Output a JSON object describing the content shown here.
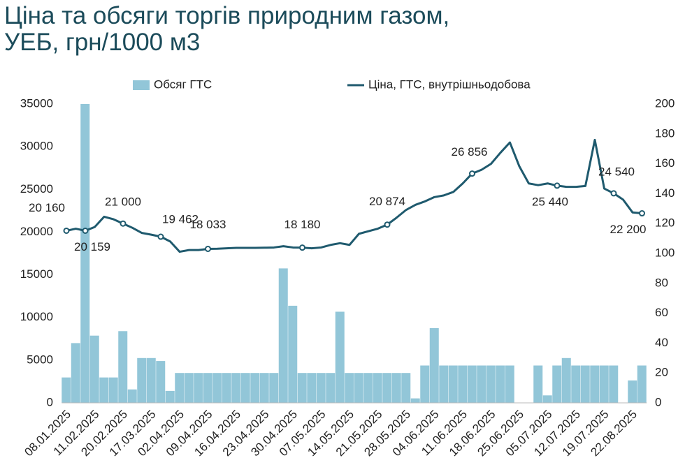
{
  "chart_data": {
    "type": "combo",
    "title": [
      "Ціна та обсяги торгів природним газом,",
      "УЕБ, грн/1000 м3"
    ],
    "categories": [
      "08.01.2025",
      null,
      null,
      "11.02.2025",
      null,
      null,
      "20.02.2025",
      null,
      null,
      "17.03.2025",
      null,
      null,
      "02.04.2025",
      null,
      null,
      "09.04.2025",
      null,
      null,
      "16.04.2025",
      null,
      null,
      "23.04.2025",
      null,
      null,
      "30.04.2025",
      null,
      null,
      "07.05.2025",
      null,
      null,
      "14.05.2025",
      null,
      null,
      "21.05.2025",
      null,
      null,
      "28.05.2025",
      null,
      null,
      "04.06.2025",
      null,
      null,
      "11.06.2025",
      null,
      null,
      "18.06.2025",
      null,
      null,
      "25.06.2025",
      null,
      null,
      "05.07.2025",
      null,
      null,
      "12.07.2025",
      null,
      null,
      "19.07.2025",
      null,
      null,
      "22.08.2025",
      null
    ],
    "series": [
      {
        "name": "Обсяг ГТС",
        "type": "bar",
        "axis": "y2",
        "color": "#92c6d8",
        "values": [
          17,
          40,
          200,
          45,
          17,
          17,
          48,
          9,
          30,
          30,
          28,
          8,
          20,
          20,
          20,
          20,
          20,
          20,
          20,
          20,
          20,
          20,
          20,
          90,
          65,
          20,
          20,
          20,
          20,
          61,
          20,
          20,
          20,
          20,
          20,
          20,
          20,
          3,
          25,
          50,
          25,
          25,
          25,
          25,
          25,
          25,
          25,
          25,
          0,
          0,
          25,
          5,
          25,
          30,
          25,
          25,
          25,
          25,
          25,
          0,
          15,
          25
        ]
      },
      {
        "name": "Ціна, ГТС, внутрішньодобова",
        "type": "line",
        "color": "#1f5a6e",
        "values": [
          20160,
          20400,
          20159,
          20600,
          21800,
          21500,
          21000,
          20500,
          19900,
          19700,
          19462,
          18900,
          17700,
          17900,
          17900,
          18033,
          18050,
          18100,
          18150,
          18150,
          18150,
          18170,
          18200,
          18350,
          18200,
          18180,
          18100,
          18200,
          18500,
          18700,
          18500,
          19800,
          20100,
          20400,
          20874,
          21700,
          22600,
          23200,
          23600,
          24100,
          24300,
          24700,
          25700,
          26856,
          27300,
          28000,
          29300,
          30500,
          27700,
          25700,
          25500,
          25700,
          25440,
          25300,
          25300,
          25400,
          30800,
          25100,
          24540,
          23800,
          22300,
          22200
        ],
        "value_labels": [
          "20 160",
          null,
          "20 159",
          null,
          null,
          null,
          "21 000",
          null,
          null,
          null,
          "19 462",
          null,
          null,
          null,
          null,
          "18 033",
          null,
          null,
          null,
          null,
          null,
          null,
          null,
          null,
          null,
          "18 180",
          null,
          null,
          null,
          null,
          null,
          null,
          null,
          null,
          "20 874",
          null,
          null,
          null,
          null,
          null,
          null,
          null,
          null,
          "26 856",
          null,
          null,
          null,
          null,
          null,
          null,
          null,
          null,
          "25 440",
          null,
          null,
          null,
          null,
          null,
          "24 540",
          null,
          null,
          "22 200"
        ]
      }
    ],
    "ylim": [
      0,
      35000
    ],
    "yticks": [
      0,
      5000,
      10000,
      15000,
      20000,
      25000,
      30000,
      35000
    ],
    "y2lim": [
      0,
      200
    ],
    "y2ticks": [
      0,
      20,
      40,
      60,
      80,
      100,
      120,
      140,
      160,
      180,
      200
    ],
    "legend": "top"
  }
}
